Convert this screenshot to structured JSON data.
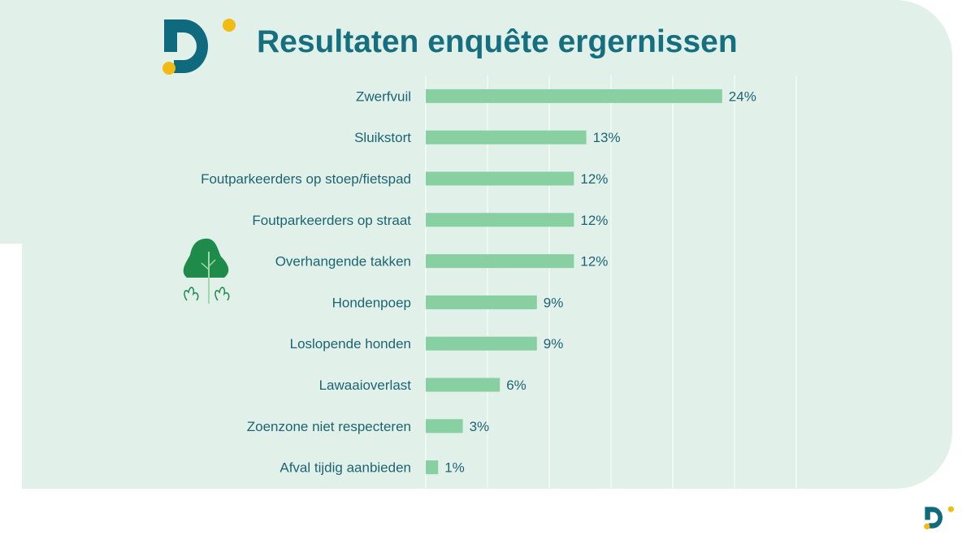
{
  "title": "Resultaten enquête ergernissen",
  "colors": {
    "bar": "#88d0a2",
    "text": "#1d6472",
    "title": "#156f7e",
    "logo_teal": "#0f6a7d",
    "logo_yellow": "#f2bb14",
    "background": "#e1f1ea"
  },
  "icons": [
    "logo-d",
    "tree-icon",
    "logo-d-small"
  ],
  "chart_data": {
    "type": "bar",
    "orientation": "horizontal",
    "categories": [
      "Zwerfvuil",
      "Sluikstort",
      "Foutparkeerders op stoep/fietspad",
      "Foutparkeerders op straat",
      "Overhangende takken",
      "Hondenpoep",
      "Loslopende honden",
      "Lawaaioverlast",
      "Zoenzone niet respecteren",
      "Afval tijdig aanbieden"
    ],
    "values": [
      24,
      13,
      12,
      12,
      12,
      9,
      9,
      6,
      3,
      1
    ],
    "labels": [
      "24%",
      "13%",
      "12%",
      "12%",
      "12%",
      "9%",
      "9%",
      "6%",
      "3%",
      "1%"
    ],
    "xlim": [
      0,
      30
    ],
    "grid_step": 5,
    "grid": true,
    "title": "Resultaten enquête ergernissen"
  }
}
